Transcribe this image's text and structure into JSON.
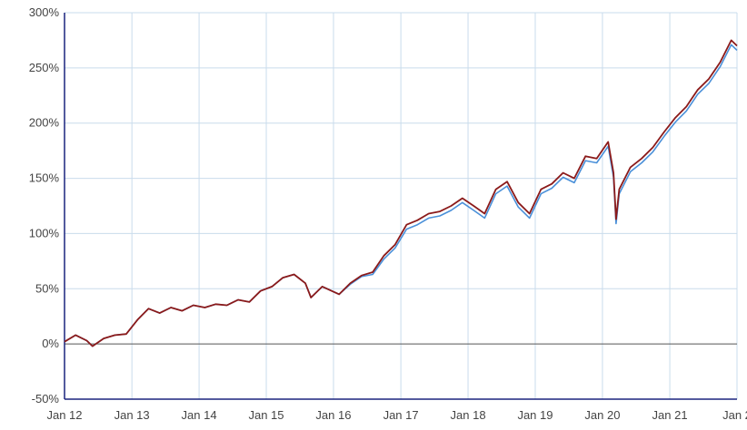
{
  "chart_data": {
    "type": "line",
    "title": "",
    "xlabel": "",
    "ylabel": "",
    "ylim": [
      -50,
      300
    ],
    "xlim": [
      "2012-01-01",
      "2022-01-01"
    ],
    "grid": true,
    "y_ticks": [
      {
        "value": 300,
        "label": "300%"
      },
      {
        "value": 250,
        "label": "250%"
      },
      {
        "value": 200,
        "label": "200%"
      },
      {
        "value": 150,
        "label": "150%"
      },
      {
        "value": 100,
        "label": "100%"
      },
      {
        "value": 50,
        "label": "50%"
      },
      {
        "value": 0,
        "label": "0%"
      },
      {
        "value": -50,
        "label": "-50%"
      }
    ],
    "x_ticks": [
      {
        "value": "2012-01-01",
        "label": "Jan 12"
      },
      {
        "value": "2013-01-01",
        "label": "Jan 13"
      },
      {
        "value": "2014-01-01",
        "label": "Jan 14"
      },
      {
        "value": "2015-01-01",
        "label": "Jan 15"
      },
      {
        "value": "2016-01-01",
        "label": "Jan 16"
      },
      {
        "value": "2017-01-01",
        "label": "Jan 17"
      },
      {
        "value": "2018-01-01",
        "label": "Jan 18"
      },
      {
        "value": "2019-01-01",
        "label": "Jan 19"
      },
      {
        "value": "2020-01-01",
        "label": "Jan 20"
      },
      {
        "value": "2021-01-01",
        "label": "Jan 21"
      },
      {
        "value": "2022-01-01",
        "label": "Jan 2"
      }
    ],
    "colors": {
      "series_1": "#8b1a1a",
      "series_2": "#4a90d9",
      "grid": "#c9dcec",
      "zero_line": "#555555",
      "axis": "#1a237e"
    },
    "series": [
      {
        "x": [
          "2012-01-01",
          "2012-03-01",
          "2012-05-01",
          "2012-06-01",
          "2012-08-01",
          "2012-10-01",
          "2012-12-01",
          "2013-02-01",
          "2013-04-01",
          "2013-06-01",
          "2013-08-01",
          "2013-10-01",
          "2013-12-01",
          "2014-02-01",
          "2014-04-01",
          "2014-06-01",
          "2014-08-01",
          "2014-10-01",
          "2014-12-01",
          "2015-02-01",
          "2015-04-01",
          "2015-06-01",
          "2015-08-01",
          "2015-09-01",
          "2015-11-01",
          "2016-02-01",
          "2016-04-01",
          "2016-06-01",
          "2016-08-01",
          "2016-10-01",
          "2016-12-01",
          "2017-02-01",
          "2017-04-01",
          "2017-06-01",
          "2017-08-01",
          "2017-10-01",
          "2017-12-01",
          "2018-02-01",
          "2018-04-01",
          "2018-06-01",
          "2018-08-01",
          "2018-10-01",
          "2018-12-01",
          "2019-02-01",
          "2019-04-01",
          "2019-06-01",
          "2019-08-01",
          "2019-10-01",
          "2019-12-01",
          "2020-02-01",
          "2020-03-01",
          "2020-03-15",
          "2020-04-01",
          "2020-06-01",
          "2020-08-01",
          "2020-10-01",
          "2020-12-01",
          "2021-02-01",
          "2021-04-01",
          "2021-06-01",
          "2021-08-01",
          "2021-10-01",
          "2021-12-01",
          "2022-01-01"
        ],
        "values": [
          2,
          8,
          3,
          -2,
          5,
          8,
          9,
          22,
          32,
          28,
          33,
          30,
          35,
          33,
          36,
          35,
          40,
          38,
          48,
          52,
          60,
          63,
          55,
          42,
          52,
          45,
          55,
          62,
          65,
          80,
          90,
          108,
          112,
          118,
          120,
          125,
          132,
          125,
          118,
          140,
          147,
          128,
          118,
          140,
          145,
          155,
          150,
          170,
          168,
          183,
          155,
          113,
          140,
          160,
          168,
          178,
          192,
          205,
          215,
          230,
          240,
          255,
          275,
          270
        ]
      },
      {
        "x": [
          "2012-01-01",
          "2012-03-01",
          "2012-05-01",
          "2012-06-01",
          "2012-08-01",
          "2012-10-01",
          "2012-12-01",
          "2013-02-01",
          "2013-04-01",
          "2013-06-01",
          "2013-08-01",
          "2013-10-01",
          "2013-12-01",
          "2014-02-01",
          "2014-04-01",
          "2014-06-01",
          "2014-08-01",
          "2014-10-01",
          "2014-12-01",
          "2015-02-01",
          "2015-04-01",
          "2015-06-01",
          "2015-08-01",
          "2015-09-01",
          "2015-11-01",
          "2016-02-01",
          "2016-04-01",
          "2016-06-01",
          "2016-08-01",
          "2016-10-01",
          "2016-12-01",
          "2017-02-01",
          "2017-04-01",
          "2017-06-01",
          "2017-08-01",
          "2017-10-01",
          "2017-12-01",
          "2018-02-01",
          "2018-04-01",
          "2018-06-01",
          "2018-08-01",
          "2018-10-01",
          "2018-12-01",
          "2019-02-01",
          "2019-04-01",
          "2019-06-01",
          "2019-08-01",
          "2019-10-01",
          "2019-12-01",
          "2020-02-01",
          "2020-03-01",
          "2020-03-15",
          "2020-04-01",
          "2020-06-01",
          "2020-08-01",
          "2020-10-01",
          "2020-12-01",
          "2021-02-01",
          "2021-04-01",
          "2021-06-01",
          "2021-08-01",
          "2021-10-01",
          "2021-12-01",
          "2022-01-01"
        ],
        "values": [
          2,
          8,
          3,
          -2,
          5,
          8,
          9,
          22,
          32,
          28,
          33,
          30,
          35,
          33,
          36,
          35,
          40,
          38,
          48,
          52,
          60,
          63,
          55,
          42,
          52,
          45,
          54,
          61,
          63,
          77,
          87,
          104,
          108,
          114,
          116,
          121,
          128,
          121,
          114,
          136,
          143,
          124,
          114,
          136,
          141,
          151,
          146,
          166,
          164,
          179,
          151,
          109,
          136,
          156,
          164,
          174,
          188,
          201,
          211,
          226,
          236,
          251,
          271,
          266
        ]
      }
    ]
  }
}
